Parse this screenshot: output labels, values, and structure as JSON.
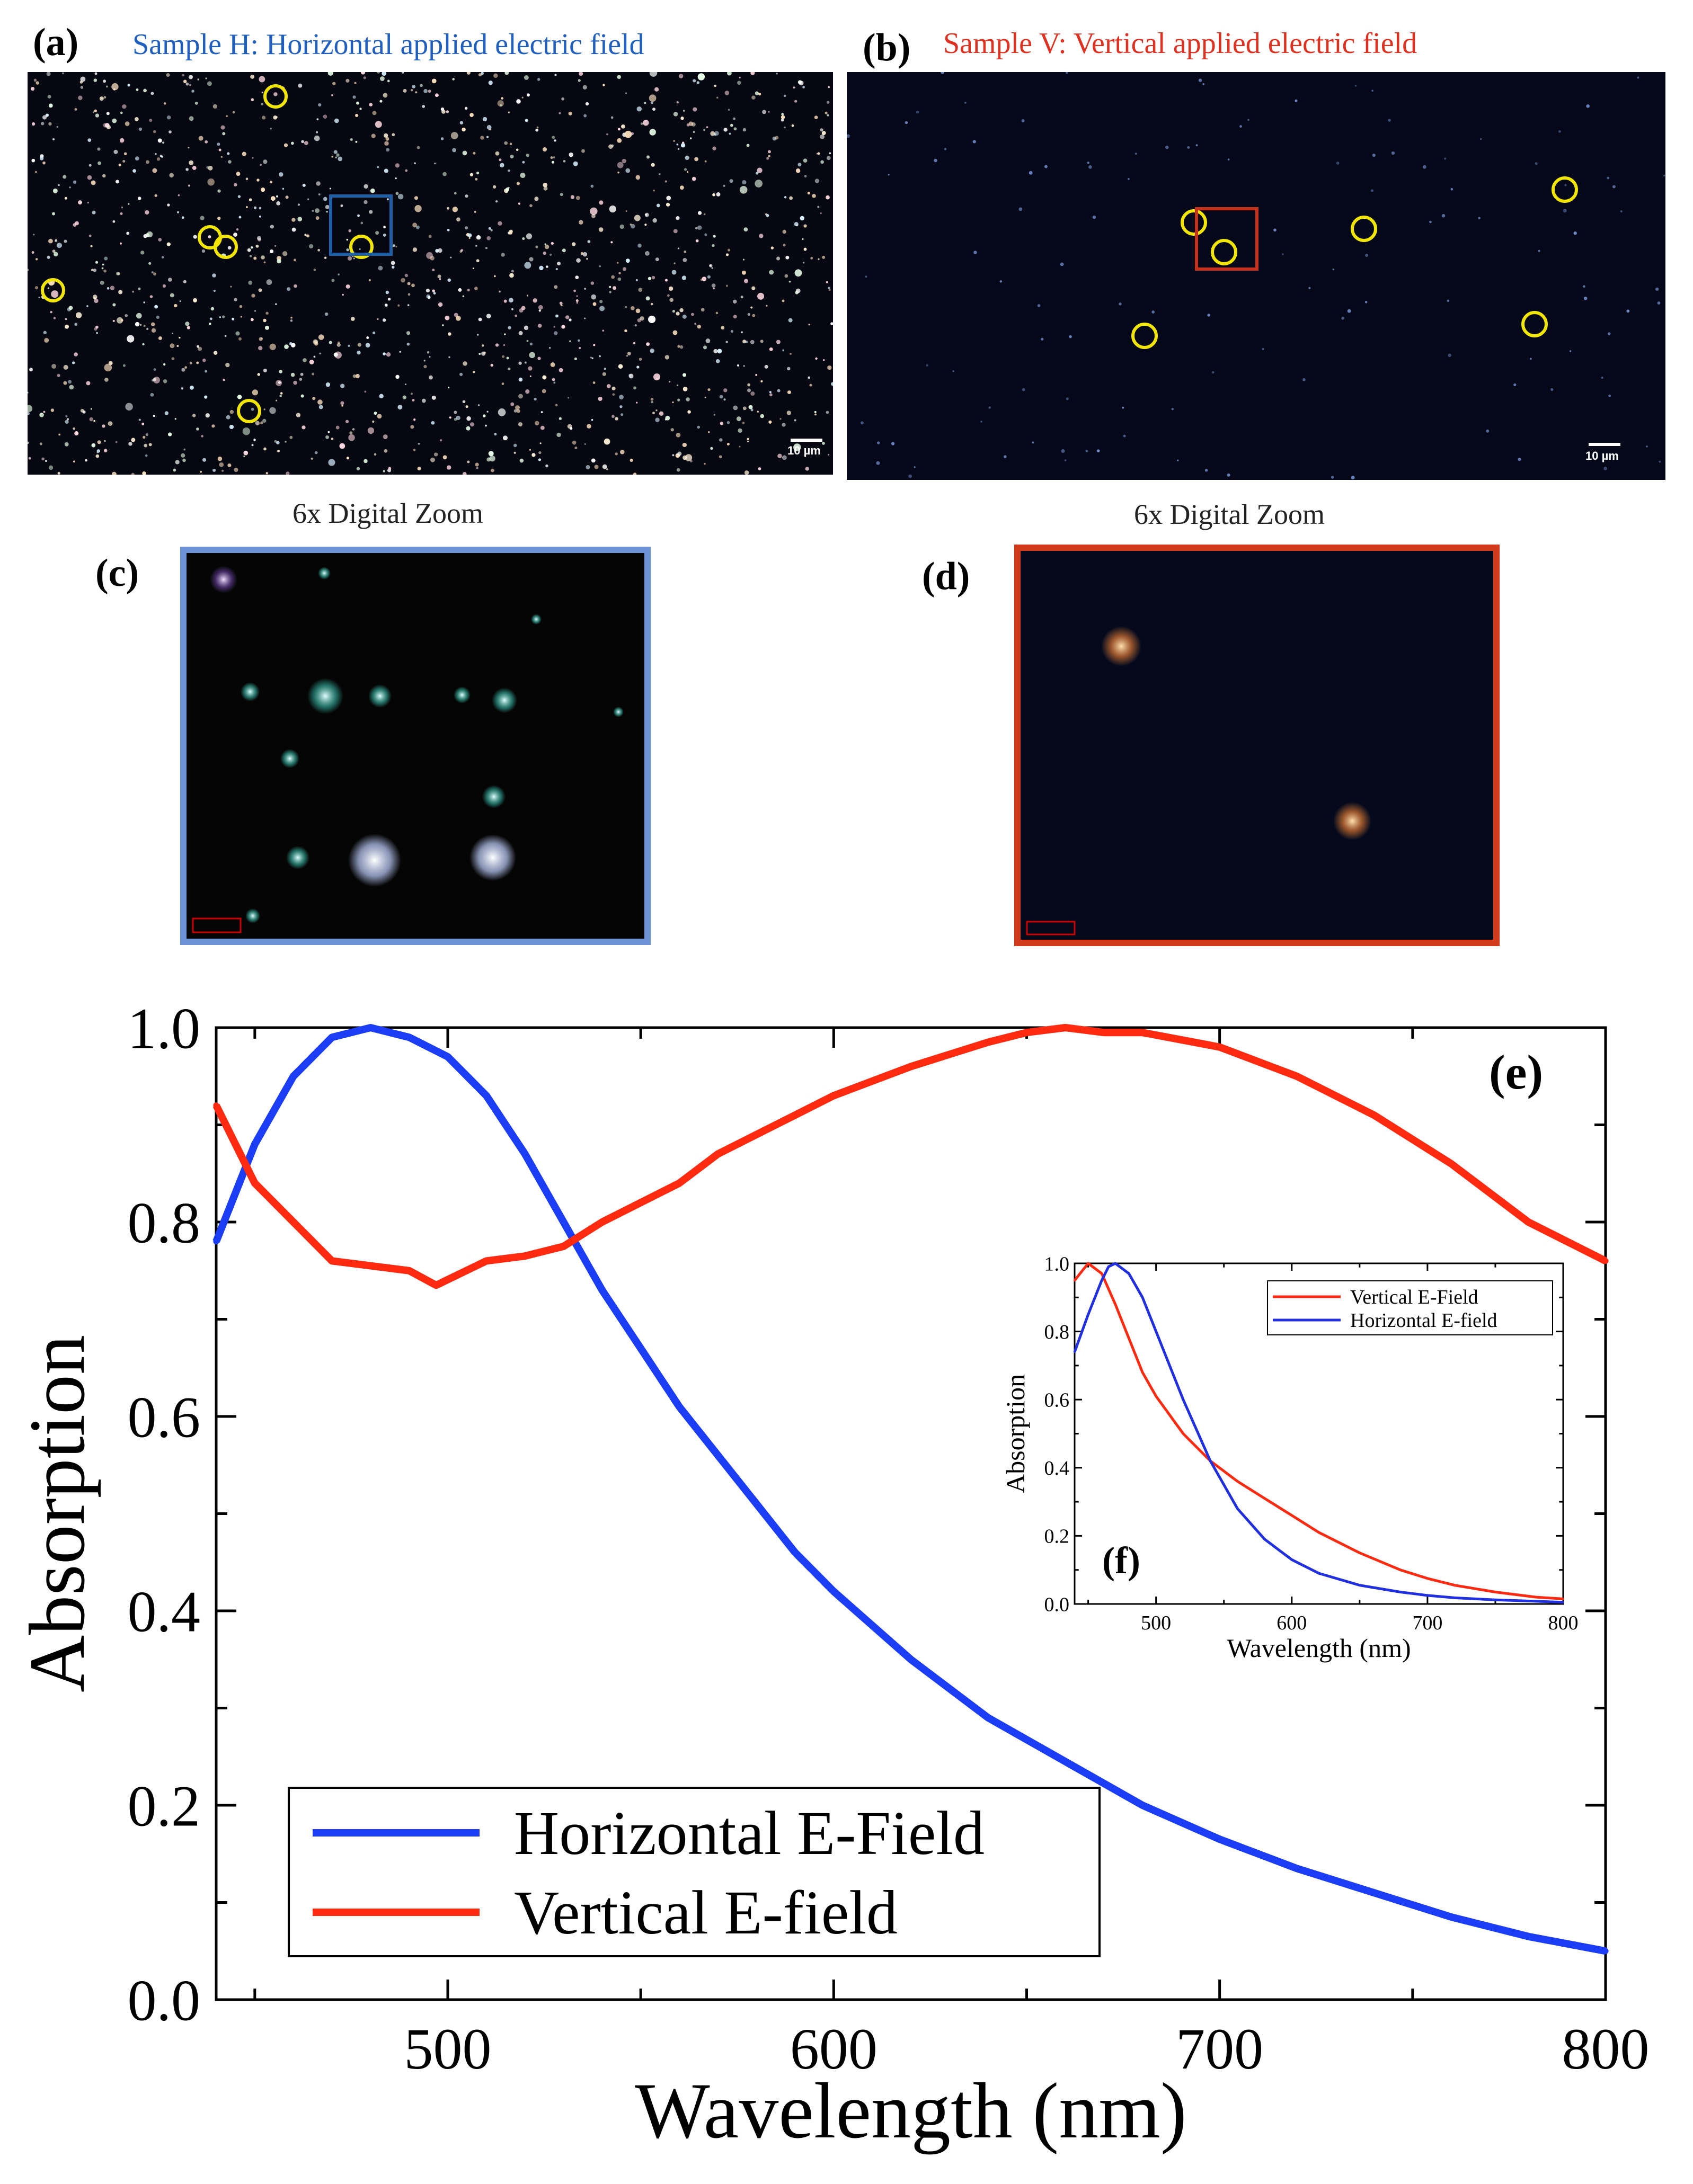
{
  "panels": {
    "a": {
      "label": "(a)",
      "title": "Sample H: Horizontal applied electric field",
      "title_color": "#1f5fbf",
      "scale_bar": "10 µm"
    },
    "b": {
      "label": "(b)",
      "title": "Sample V: Vertical applied electric field",
      "title_color": "#e03020",
      "scale_bar": "10 µm"
    },
    "c": {
      "label": "(c)",
      "zoom_caption": "6x Digital Zoom"
    },
    "d": {
      "label": "(d)",
      "zoom_caption": "6x Digital Zoom"
    },
    "e": {
      "label": "(e)"
    },
    "f": {
      "label": "(f)"
    }
  },
  "colors": {
    "horizontal": "#1a3df5",
    "vertical": "#ff2a10",
    "inset_horizontal": "#2030e0",
    "inset_vertical": "#ff2a10",
    "frame_c": "#6b93d6",
    "frame_d": "#d03a1a",
    "circle": "#f2e600"
  },
  "chart_data": [
    {
      "type": "line",
      "id": "main-e",
      "xlabel": "Wavelength (nm)",
      "ylabel": "Absorption",
      "xlim": [
        440,
        800
      ],
      "ylim": [
        0.0,
        1.0
      ],
      "xticks": [
        500,
        600,
        700,
        800
      ],
      "yticks": [
        "0.0",
        "0.2",
        "0.4",
        "0.6",
        "0.8",
        "1.0"
      ],
      "legend": "bottom-left",
      "series": [
        {
          "name": "Horizontal E-Field",
          "color": "#1a3df5",
          "x": [
            440,
            450,
            460,
            470,
            480,
            490,
            500,
            510,
            520,
            530,
            540,
            550,
            560,
            570,
            580,
            590,
            600,
            620,
            640,
            660,
            680,
            700,
            720,
            740,
            760,
            780,
            800
          ],
          "y": [
            0.78,
            0.88,
            0.95,
            0.99,
            1.0,
            0.99,
            0.97,
            0.93,
            0.87,
            0.8,
            0.73,
            0.67,
            0.61,
            0.56,
            0.51,
            0.46,
            0.42,
            0.35,
            0.29,
            0.245,
            0.2,
            0.165,
            0.135,
            0.11,
            0.085,
            0.065,
            0.05
          ]
        },
        {
          "name": "Vertical E-field",
          "color": "#ff2a10",
          "x": [
            440,
            450,
            460,
            470,
            480,
            490,
            497,
            510,
            520,
            530,
            540,
            550,
            560,
            570,
            580,
            590,
            600,
            620,
            640,
            650,
            660,
            670,
            680,
            700,
            720,
            740,
            760,
            780,
            800
          ],
          "y": [
            0.92,
            0.84,
            0.8,
            0.76,
            0.755,
            0.75,
            0.735,
            0.76,
            0.765,
            0.775,
            0.8,
            0.82,
            0.84,
            0.87,
            0.89,
            0.91,
            0.93,
            0.96,
            0.985,
            0.995,
            1.0,
            0.995,
            0.995,
            0.98,
            0.95,
            0.91,
            0.86,
            0.8,
            0.76
          ]
        }
      ]
    },
    {
      "type": "line",
      "id": "inset-f",
      "xlabel": "Wavelength (nm)",
      "ylabel": "Absorption",
      "xlim": [
        440,
        800
      ],
      "ylim": [
        0.0,
        1.0
      ],
      "xticks": [
        500,
        600,
        700,
        800
      ],
      "yticks": [
        "0.0",
        "0.2",
        "0.4",
        "0.6",
        "0.8",
        "1.0"
      ],
      "legend": "top-right",
      "series": [
        {
          "name": "Vertical E-Field",
          "color": "#ff2a10",
          "x": [
            440,
            450,
            460,
            470,
            480,
            490,
            500,
            520,
            540,
            560,
            580,
            600,
            620,
            650,
            680,
            700,
            720,
            750,
            780,
            800
          ],
          "y": [
            0.95,
            1.0,
            0.97,
            0.88,
            0.78,
            0.68,
            0.61,
            0.5,
            0.42,
            0.36,
            0.31,
            0.26,
            0.21,
            0.15,
            0.1,
            0.075,
            0.055,
            0.035,
            0.02,
            0.015
          ]
        },
        {
          "name": "Horizontal E-field",
          "color": "#2030e0",
          "x": [
            440,
            450,
            460,
            465,
            470,
            480,
            490,
            500,
            520,
            540,
            560,
            580,
            600,
            620,
            650,
            680,
            700,
            720,
            750,
            780,
            800
          ],
          "y": [
            0.74,
            0.85,
            0.95,
            0.99,
            1.0,
            0.97,
            0.9,
            0.8,
            0.6,
            0.42,
            0.28,
            0.19,
            0.13,
            0.09,
            0.055,
            0.035,
            0.025,
            0.018,
            0.012,
            0.008,
            0.005
          ]
        }
      ]
    }
  ]
}
